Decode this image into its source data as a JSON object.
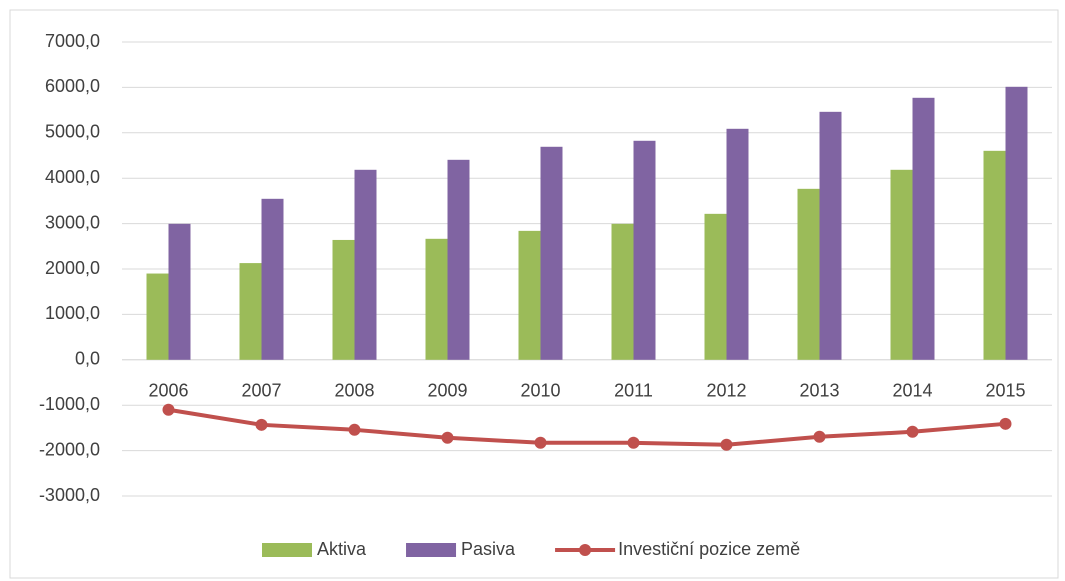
{
  "chart_data": {
    "type": "bar_line",
    "categories": [
      "2006",
      "2007",
      "2008",
      "2009",
      "2010",
      "2011",
      "2012",
      "2013",
      "2014",
      "2015"
    ],
    "series": [
      {
        "name": "Aktiva",
        "type": "bar",
        "color": "#9bbb59",
        "values": [
          1900,
          2130,
          2640,
          2665,
          2840,
          2995,
          3215,
          3766,
          4185,
          4603
        ]
      },
      {
        "name": "Pasiva",
        "type": "bar",
        "color": "#8064a2",
        "values": [
          2995,
          3546,
          4185,
          4405,
          4692,
          4824,
          5088,
          5462,
          5771,
          6013
        ]
      },
      {
        "name": "Investiční pozice země",
        "type": "line",
        "color": "#c0504d",
        "values": [
          -1101,
          -1432,
          -1542,
          -1718,
          -1828,
          -1828,
          -1872,
          -1696,
          -1586,
          -1410
        ]
      }
    ],
    "ylim": [
      -3000,
      7000
    ],
    "yticks": [
      {
        "value": -3000,
        "label": "-3000,0"
      },
      {
        "value": -2000,
        "label": "-2000,0"
      },
      {
        "value": -1000,
        "label": "-1000,0"
      },
      {
        "value": 0,
        "label": "0,0"
      },
      {
        "value": 1000,
        "label": "1000,0"
      },
      {
        "value": 2000,
        "label": "2000,0"
      },
      {
        "value": 3000,
        "label": "3000,0"
      },
      {
        "value": 4000,
        "label": "4000,0"
      },
      {
        "value": 5000,
        "label": "5000,0"
      },
      {
        "value": 6000,
        "label": "6000,0"
      },
      {
        "value": 7000,
        "label": "7000,0"
      }
    ],
    "grid": true,
    "legend": "bottom"
  }
}
